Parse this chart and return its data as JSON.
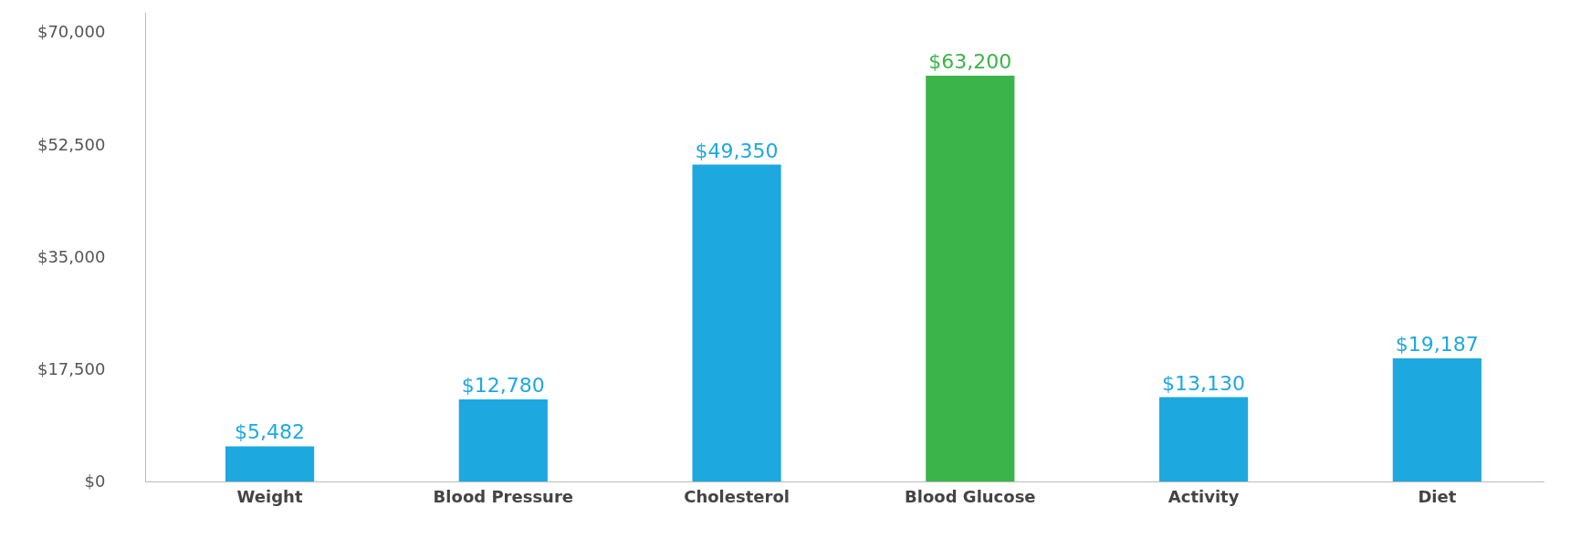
{
  "chart_data": {
    "type": "bar",
    "categories": [
      "Weight",
      "Blood Pressure",
      "Cholesterol",
      "Blood Glucose",
      "Activity",
      "Diet"
    ],
    "values": [
      5482,
      12780,
      49350,
      63200,
      13130,
      19187
    ],
    "colors": [
      "#1ea8e0",
      "#1ea8e0",
      "#1ea8e0",
      "#3bb44a",
      "#1ea8e0",
      "#1ea8e0"
    ],
    "value_labels": [
      "$5,482",
      "$12,780",
      "$49,350",
      "$63,200",
      "$13,130",
      "$19,187"
    ],
    "ylim": [
      0,
      73000
    ],
    "yticks": [
      {
        "value": 0,
        "label": "$0"
      },
      {
        "value": 17500,
        "label": "$17,500"
      },
      {
        "value": 35000,
        "label": "$35,000"
      },
      {
        "value": 52500,
        "label": "$52,500"
      },
      {
        "value": 70000,
        "label": "$70,000"
      }
    ]
  }
}
